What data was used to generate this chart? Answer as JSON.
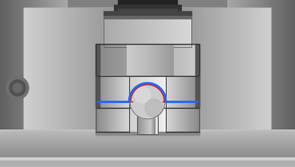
{
  "fig_w": 3.7,
  "fig_h": 2.09,
  "dpi": 100,
  "bg_outer": "#a0a0a0",
  "blue_color": "#2266ff",
  "red_color": "#cc2222",
  "white": "#ffffff",
  "c_dark": "#383838",
  "c_mid_dark": "#606060",
  "c_mid": "#909090",
  "c_light": "#c0c0c0",
  "c_vlight": "#d8d8d8",
  "c_shine": "#e8e8e8",
  "c_black": "#111111"
}
